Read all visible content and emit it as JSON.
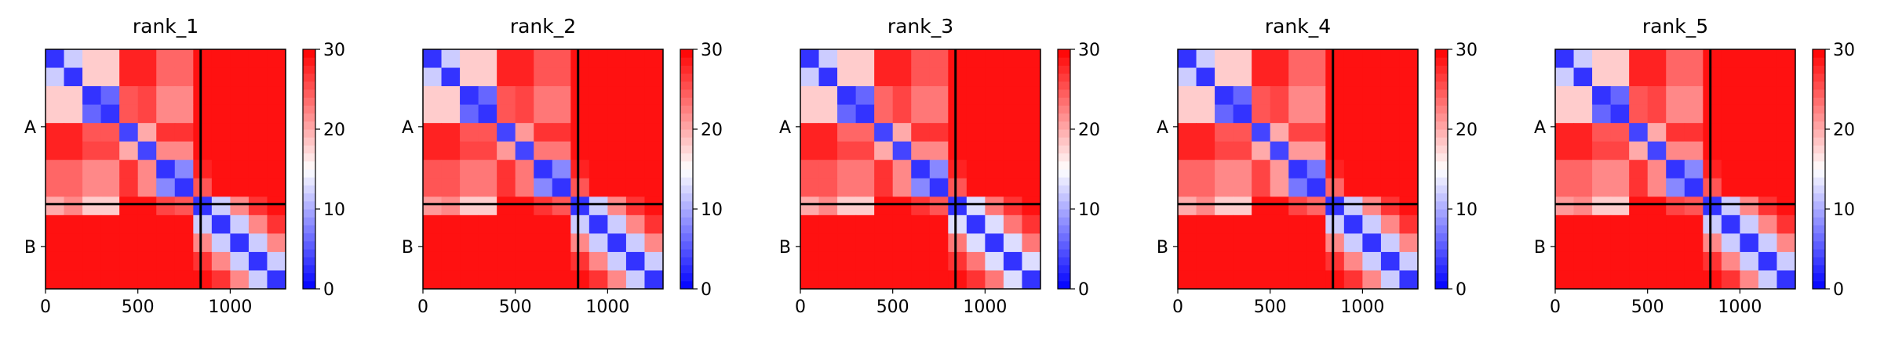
{
  "chart_data": [
    {
      "type": "heatmap",
      "title": "rank_1",
      "bins": [
        0,
        100,
        200,
        300,
        400,
        500,
        600,
        700,
        800,
        900,
        1000,
        1100,
        1200,
        1300
      ],
      "xlim": [
        0,
        1300
      ],
      "xticks": [
        0,
        500,
        1000
      ],
      "ylim": [
        1300,
        0
      ],
      "yticks": [
        {
          "value": 420,
          "label": "A"
        },
        {
          "value": 1070,
          "label": "B"
        }
      ],
      "boundaries": [
        840
      ],
      "colormap": [
        "#0000ff",
        "#ffffff",
        "#ff0000"
      ],
      "clim": [
        0,
        30
      ],
      "cticks": [
        0,
        10,
        20,
        30
      ],
      "values": [
        [
          3,
          12,
          18,
          18,
          28,
          28,
          24,
          24,
          29,
          29,
          29,
          29,
          29
        ],
        [
          12,
          3,
          18,
          18,
          28,
          28,
          24,
          24,
          29,
          29,
          29,
          29,
          29
        ],
        [
          18,
          18,
          3,
          6,
          25,
          26,
          22,
          22,
          29,
          29,
          29,
          29,
          29
        ],
        [
          18,
          18,
          6,
          3,
          25,
          26,
          22,
          22,
          29,
          29,
          29,
          29,
          29
        ],
        [
          28,
          28,
          25,
          25,
          4,
          20,
          27,
          27,
          29,
          29,
          29,
          29,
          29
        ],
        [
          28,
          28,
          26,
          26,
          20,
          4,
          22,
          22,
          29,
          29,
          29,
          29,
          29
        ],
        [
          24,
          24,
          22,
          22,
          27,
          22,
          3,
          8,
          28,
          29,
          29,
          29,
          29
        ],
        [
          24,
          24,
          22,
          22,
          27,
          22,
          8,
          3,
          25,
          29,
          29,
          29,
          29
        ],
        [
          20,
          22,
          18,
          18,
          29,
          29,
          26,
          25,
          3,
          12,
          22,
          27,
          29
        ],
        [
          29,
          29,
          29,
          29,
          29,
          29,
          29,
          29,
          12,
          3,
          12,
          22,
          27
        ],
        [
          29,
          29,
          29,
          29,
          29,
          29,
          29,
          29,
          22,
          12,
          3,
          12,
          22
        ],
        [
          29,
          29,
          29,
          29,
          29,
          29,
          29,
          29,
          27,
          22,
          12,
          3,
          12
        ],
        [
          29,
          29,
          29,
          29,
          29,
          29,
          29,
          29,
          29,
          27,
          22,
          12,
          3
        ]
      ]
    },
    {
      "type": "heatmap",
      "title": "rank_2",
      "bins": [
        0,
        100,
        200,
        300,
        400,
        500,
        600,
        700,
        800,
        900,
        1000,
        1100,
        1200,
        1300
      ],
      "xlim": [
        0,
        1300
      ],
      "xticks": [
        0,
        500,
        1000
      ],
      "ylim": [
        1300,
        0
      ],
      "yticks": [
        {
          "value": 420,
          "label": "A"
        },
        {
          "value": 1070,
          "label": "B"
        }
      ],
      "boundaries": [
        840
      ],
      "colormap": [
        "#0000ff",
        "#ffffff",
        "#ff0000"
      ],
      "clim": [
        0,
        30
      ],
      "cticks": [
        0,
        10,
        20,
        30
      ],
      "values": [
        [
          3,
          12,
          18,
          18,
          28,
          28,
          25,
          25,
          29,
          29,
          29,
          29,
          29
        ],
        [
          12,
          3,
          18,
          18,
          28,
          28,
          25,
          25,
          29,
          29,
          29,
          29,
          29
        ],
        [
          18,
          18,
          3,
          6,
          25,
          26,
          23,
          23,
          29,
          29,
          29,
          29,
          29
        ],
        [
          18,
          18,
          6,
          3,
          25,
          26,
          23,
          23,
          29,
          29,
          29,
          29,
          29
        ],
        [
          28,
          28,
          25,
          25,
          4,
          21,
          27,
          27,
          29,
          29,
          29,
          29,
          29
        ],
        [
          28,
          28,
          26,
          26,
          21,
          4,
          23,
          23,
          29,
          29,
          29,
          29,
          29
        ],
        [
          25,
          25,
          23,
          23,
          27,
          23,
          3,
          8,
          28,
          29,
          29,
          29,
          29
        ],
        [
          25,
          25,
          23,
          23,
          27,
          23,
          8,
          3,
          25,
          29,
          29,
          29,
          29
        ],
        [
          21,
          22,
          18,
          18,
          29,
          29,
          27,
          25,
          3,
          12,
          22,
          27,
          29
        ],
        [
          29,
          29,
          29,
          29,
          29,
          29,
          29,
          29,
          12,
          3,
          12,
          22,
          27
        ],
        [
          29,
          29,
          29,
          29,
          29,
          29,
          29,
          29,
          22,
          12,
          3,
          12,
          22
        ],
        [
          29,
          29,
          29,
          29,
          29,
          29,
          29,
          29,
          27,
          22,
          12,
          3,
          12
        ],
        [
          29,
          29,
          29,
          29,
          29,
          29,
          29,
          29,
          29,
          27,
          22,
          12,
          3
        ]
      ]
    },
    {
      "type": "heatmap",
      "title": "rank_3",
      "bins": [
        0,
        100,
        200,
        300,
        400,
        500,
        600,
        700,
        800,
        900,
        1000,
        1100,
        1200,
        1300
      ],
      "xlim": [
        0,
        1300
      ],
      "xticks": [
        0,
        500,
        1000
      ],
      "ylim": [
        1300,
        0
      ],
      "yticks": [
        {
          "value": 420,
          "label": "A"
        },
        {
          "value": 1070,
          "label": "B"
        }
      ],
      "boundaries": [
        840
      ],
      "colormap": [
        "#0000ff",
        "#ffffff",
        "#ff0000"
      ],
      "clim": [
        0,
        30
      ],
      "cticks": [
        0,
        10,
        20,
        30
      ],
      "values": [
        [
          3,
          12,
          18,
          18,
          28,
          28,
          25,
          25,
          29,
          29,
          29,
          29,
          29
        ],
        [
          12,
          3,
          18,
          18,
          28,
          28,
          25,
          25,
          29,
          29,
          29,
          29,
          29
        ],
        [
          18,
          18,
          3,
          6,
          24,
          26,
          23,
          23,
          29,
          29,
          29,
          29,
          29
        ],
        [
          18,
          18,
          6,
          3,
          24,
          26,
          23,
          23,
          29,
          29,
          29,
          29,
          29
        ],
        [
          28,
          28,
          24,
          24,
          4,
          20,
          27,
          27,
          29,
          29,
          29,
          29,
          29
        ],
        [
          28,
          28,
          26,
          26,
          20,
          4,
          22,
          22,
          29,
          29,
          29,
          29,
          29
        ],
        [
          25,
          25,
          23,
          23,
          27,
          22,
          3,
          8,
          28,
          29,
          29,
          29,
          29
        ],
        [
          25,
          25,
          23,
          23,
          27,
          22,
          8,
          3,
          25,
          29,
          29,
          29,
          29
        ],
        [
          20,
          22,
          18,
          18,
          29,
          29,
          27,
          25,
          3,
          13,
          23,
          27,
          29
        ],
        [
          29,
          29,
          29,
          29,
          29,
          29,
          29,
          29,
          13,
          3,
          13,
          23,
          27
        ],
        [
          29,
          29,
          29,
          29,
          29,
          29,
          29,
          29,
          23,
          13,
          3,
          13,
          23
        ],
        [
          29,
          29,
          29,
          29,
          29,
          29,
          29,
          29,
          27,
          23,
          13,
          3,
          13
        ],
        [
          29,
          29,
          29,
          29,
          29,
          29,
          29,
          29,
          29,
          27,
          23,
          13,
          3
        ]
      ]
    },
    {
      "type": "heatmap",
      "title": "rank_4",
      "bins": [
        0,
        100,
        200,
        300,
        400,
        500,
        600,
        700,
        800,
        900,
        1000,
        1100,
        1200,
        1300
      ],
      "xlim": [
        0,
        1300
      ],
      "xticks": [
        0,
        500,
        1000
      ],
      "ylim": [
        1300,
        0
      ],
      "yticks": [
        {
          "value": 420,
          "label": "A"
        },
        {
          "value": 1070,
          "label": "B"
        }
      ],
      "boundaries": [
        840
      ],
      "colormap": [
        "#0000ff",
        "#ffffff",
        "#ff0000"
      ],
      "clim": [
        0,
        30
      ],
      "cticks": [
        0,
        10,
        20,
        30
      ],
      "values": [
        [
          3,
          12,
          18,
          18,
          28,
          28,
          24,
          24,
          29,
          29,
          29,
          29,
          29
        ],
        [
          12,
          3,
          18,
          18,
          28,
          28,
          24,
          24,
          29,
          29,
          29,
          29,
          29
        ],
        [
          18,
          18,
          3,
          6,
          25,
          26,
          22,
          22,
          29,
          29,
          29,
          29,
          29
        ],
        [
          18,
          18,
          6,
          3,
          25,
          26,
          22,
          22,
          29,
          29,
          29,
          29,
          29
        ],
        [
          28,
          28,
          25,
          25,
          4,
          20,
          26,
          26,
          29,
          29,
          29,
          29,
          29
        ],
        [
          28,
          28,
          26,
          26,
          20,
          4,
          21,
          21,
          29,
          29,
          29,
          29,
          29
        ],
        [
          24,
          24,
          22,
          22,
          26,
          21,
          3,
          7,
          28,
          29,
          29,
          29,
          29
        ],
        [
          24,
          24,
          22,
          22,
          26,
          21,
          7,
          3,
          24,
          29,
          29,
          29,
          29
        ],
        [
          20,
          22,
          18,
          18,
          29,
          29,
          26,
          24,
          3,
          12,
          22,
          27,
          29
        ],
        [
          29,
          29,
          29,
          29,
          29,
          29,
          29,
          29,
          12,
          3,
          12,
          22,
          27
        ],
        [
          29,
          29,
          29,
          29,
          29,
          29,
          29,
          29,
          22,
          12,
          3,
          12,
          22
        ],
        [
          29,
          29,
          29,
          29,
          29,
          29,
          29,
          29,
          27,
          22,
          12,
          3,
          12
        ],
        [
          29,
          29,
          29,
          29,
          29,
          29,
          29,
          29,
          29,
          27,
          22,
          12,
          3
        ]
      ]
    },
    {
      "type": "heatmap",
      "title": "rank_5",
      "bins": [
        0,
        100,
        200,
        300,
        400,
        500,
        600,
        700,
        800,
        900,
        1000,
        1100,
        1200,
        1300
      ],
      "xlim": [
        0,
        1300
      ],
      "xticks": [
        0,
        500,
        1000
      ],
      "ylim": [
        1300,
        0
      ],
      "yticks": [
        {
          "value": 420,
          "label": "A"
        },
        {
          "value": 1070,
          "label": "B"
        }
      ],
      "boundaries": [
        840
      ],
      "colormap": [
        "#0000ff",
        "#ffffff",
        "#ff0000"
      ],
      "clim": [
        0,
        30
      ],
      "cticks": [
        0,
        10,
        20,
        30
      ],
      "values": [
        [
          3,
          12,
          18,
          18,
          28,
          28,
          24,
          24,
          29,
          29,
          29,
          29,
          29
        ],
        [
          12,
          3,
          18,
          18,
          28,
          28,
          24,
          24,
          29,
          29,
          29,
          29,
          29
        ],
        [
          18,
          18,
          3,
          6,
          25,
          26,
          22,
          22,
          29,
          29,
          29,
          29,
          29
        ],
        [
          18,
          18,
          6,
          3,
          25,
          26,
          22,
          22,
          29,
          29,
          29,
          29,
          29
        ],
        [
          28,
          28,
          25,
          25,
          4,
          20,
          27,
          27,
          29,
          29,
          29,
          29,
          29
        ],
        [
          28,
          28,
          26,
          26,
          20,
          4,
          22,
          22,
          29,
          29,
          29,
          29,
          29
        ],
        [
          24,
          24,
          22,
          22,
          27,
          22,
          3,
          8,
          28,
          29,
          29,
          29,
          29
        ],
        [
          24,
          24,
          22,
          22,
          27,
          22,
          8,
          3,
          25,
          29,
          29,
          29,
          29
        ],
        [
          21,
          22,
          18,
          18,
          29,
          29,
          26,
          25,
          3,
          12,
          22,
          27,
          29
        ],
        [
          29,
          29,
          29,
          29,
          29,
          29,
          29,
          29,
          12,
          3,
          12,
          22,
          27
        ],
        [
          29,
          29,
          29,
          29,
          29,
          29,
          29,
          29,
          22,
          12,
          3,
          12,
          22
        ],
        [
          29,
          29,
          29,
          29,
          29,
          29,
          29,
          29,
          27,
          22,
          12,
          3,
          12
        ],
        [
          29,
          29,
          29,
          29,
          29,
          29,
          29,
          29,
          29,
          27,
          22,
          12,
          3
        ]
      ]
    }
  ]
}
